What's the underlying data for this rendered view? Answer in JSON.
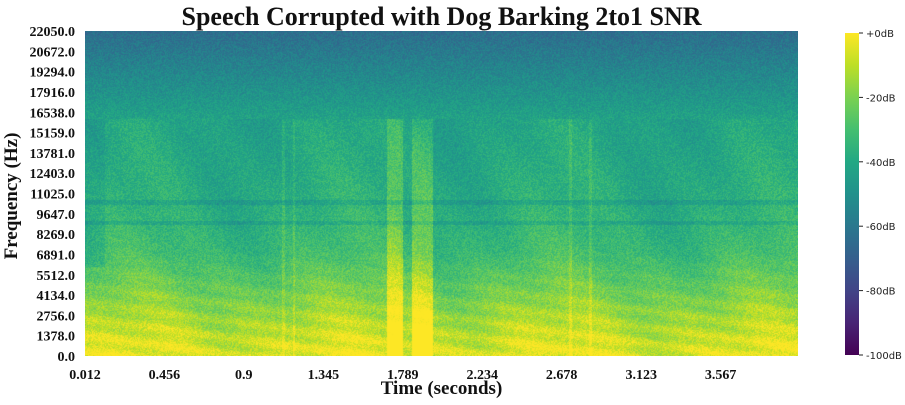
{
  "chart_data": {
    "type": "heatmap",
    "title": "Speech Corrupted with Dog Barking 2to1 SNR",
    "xlabel": "Time (seconds)",
    "ylabel": "Frequency (Hz)",
    "x_ticks": [
      "0.012",
      "0.456",
      "0.9",
      "1.345",
      "1.789",
      "2.234",
      "2.678",
      "3.123",
      "3.567"
    ],
    "y_ticks": [
      "0.0",
      "1378.0",
      "2756.0",
      "4134.0",
      "5512.0",
      "6891.0",
      "8269.0",
      "9647.0",
      "11025.0",
      "12403.0",
      "13781.0",
      "15159.0",
      "16538.0",
      "17916.0",
      "19294.0",
      "20672.0",
      "22050.0"
    ],
    "xlim": [
      0.012,
      4.0
    ],
    "ylim": [
      0,
      22050
    ],
    "colormap": "viridis",
    "colorbar": {
      "ticks": [
        "+0dB",
        "-20dB",
        "-40dB",
        "-60dB",
        "-80dB",
        "-100dB"
      ],
      "range_db": [
        -100,
        0
      ]
    },
    "energy_profile": {
      "lowpass_cutoff_hz": 16100,
      "onset_time_s": 0.12,
      "band_levels_db": [
        {
          "freq_hz": 0,
          "level_db": -4
        },
        {
          "freq_hz": 1000,
          "level_db": -7
        },
        {
          "freq_hz": 2500,
          "level_db": -13
        },
        {
          "freq_hz": 4500,
          "level_db": -22
        },
        {
          "freq_hz": 7000,
          "level_db": -32
        },
        {
          "freq_hz": 10000,
          "level_db": -37
        },
        {
          "freq_hz": 16000,
          "level_db": -42
        },
        {
          "freq_hz": 22050,
          "level_db": -64
        }
      ],
      "bark_bursts_s": [
        [
          1.7,
          1.79
        ],
        [
          1.84,
          1.96
        ]
      ],
      "faint_vertical_lines_s": [
        1.12,
        1.18,
        2.73,
        2.84
      ]
    }
  }
}
